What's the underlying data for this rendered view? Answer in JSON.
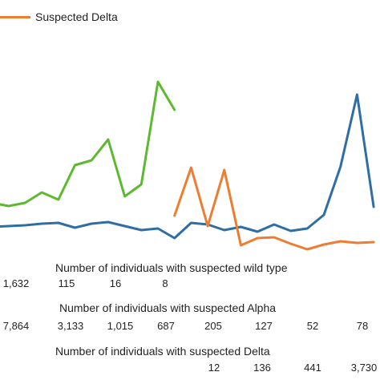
{
  "chart_data": {
    "type": "line",
    "legend": {
      "position": "top-left",
      "visible_entries": [
        "Suspected Delta"
      ]
    },
    "series": [
      {
        "name": "",
        "color": "#2f6ea5",
        "points": [
          [
            0,
            283
          ],
          [
            1,
            282
          ],
          [
            2,
            281
          ],
          [
            3,
            279
          ],
          [
            4,
            278
          ],
          [
            5,
            284
          ],
          [
            6,
            279
          ],
          [
            7,
            277
          ],
          [
            8,
            282
          ],
          [
            9,
            287
          ],
          [
            10,
            285
          ],
          [
            11,
            297
          ],
          [
            12,
            278
          ],
          [
            13,
            280
          ],
          [
            14,
            287
          ],
          [
            15,
            283
          ],
          [
            16,
            289
          ],
          [
            17,
            280
          ],
          [
            18,
            288
          ],
          [
            19,
            285
          ],
          [
            20,
            268
          ],
          [
            21,
            208
          ],
          [
            22,
            118
          ],
          [
            23,
            258
          ]
        ]
      },
      {
        "name": "",
        "color": "#5cb930",
        "points": [
          [
            0,
            253
          ],
          [
            1,
            257
          ],
          [
            2,
            253
          ],
          [
            3,
            240
          ],
          [
            4,
            249
          ],
          [
            5,
            206
          ],
          [
            6,
            200
          ],
          [
            7,
            174
          ],
          [
            8,
            245
          ],
          [
            9,
            230
          ],
          [
            10,
            102
          ],
          [
            11,
            137
          ]
        ]
      },
      {
        "name": "Suspected Delta",
        "color": "#ed7d31",
        "points": [
          [
            11,
            269
          ],
          [
            12,
            209
          ],
          [
            13,
            282
          ],
          [
            14,
            212
          ],
          [
            15,
            306
          ],
          [
            16,
            297
          ],
          [
            17,
            296
          ],
          [
            18,
            304
          ],
          [
            19,
            311
          ],
          [
            20,
            305
          ],
          [
            21,
            301
          ],
          [
            22,
            303
          ],
          [
            23,
            302
          ]
        ]
      }
    ]
  },
  "tables": [
    {
      "title": "Number of individuals with suspected wild type",
      "cells": [
        "1,632",
        "115",
        "16",
        "8"
      ]
    },
    {
      "title": "Number of individuals with suspected Alpha",
      "cells": [
        "7,864",
        "3,133",
        "1,015",
        "687",
        "205",
        "127",
        "52",
        "78"
      ]
    },
    {
      "title": "Number of individuals with suspected Delta",
      "cells": [
        "12",
        "136",
        "441",
        "3,730"
      ]
    }
  ]
}
